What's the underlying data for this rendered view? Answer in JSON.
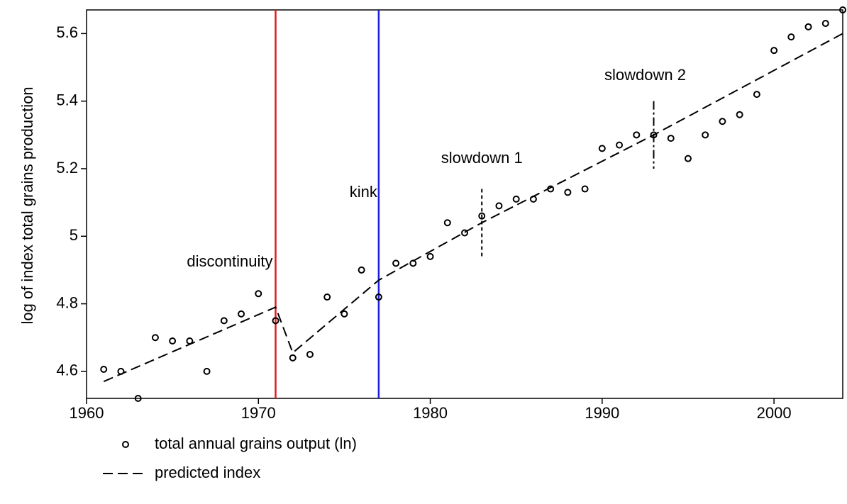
{
  "chart_data": {
    "type": "scatter",
    "ylabel": "log of index total grains production",
    "xlim": [
      1960,
      2004
    ],
    "ylim": [
      4.52,
      5.67
    ],
    "xticks": [
      1960,
      1970,
      1980,
      1990,
      2000
    ],
    "yticks": [
      4.6,
      4.8,
      5,
      5.2,
      5.4,
      5.6
    ],
    "series": [
      {
        "name": "total annual grains output (ln)",
        "color": "#000000",
        "x": [
          1961,
          1962,
          1963,
          1964,
          1965,
          1966,
          1967,
          1968,
          1969,
          1970,
          1971,
          1972,
          1973,
          1974,
          1975,
          1976,
          1977,
          1978,
          1979,
          1980,
          1981,
          1982,
          1983,
          1984,
          1985,
          1986,
          1987,
          1988,
          1989,
          1990,
          1991,
          1992,
          1993,
          1994,
          1995,
          1996,
          1997,
          1998,
          1999,
          2000,
          2001,
          2002,
          2003,
          2004
        ],
        "values": [
          4.606,
          4.6,
          4.52,
          4.7,
          4.69,
          4.69,
          4.6,
          4.75,
          4.77,
          4.83,
          4.75,
          4.64,
          4.65,
          4.82,
          4.77,
          4.9,
          4.82,
          4.92,
          4.92,
          4.94,
          5.04,
          5.01,
          5.06,
          5.09,
          5.11,
          5.11,
          5.14,
          5.13,
          5.14,
          5.26,
          5.27,
          5.3,
          5.3,
          5.29,
          5.23,
          5.3,
          5.34,
          5.36,
          5.42,
          5.55,
          5.59,
          5.62,
          5.63,
          5.67
        ]
      },
      {
        "name": "predicted index",
        "color": "#000000",
        "x": [
          1961,
          1971,
          1972,
          1977,
          1983,
          1993,
          2004
        ],
        "values": [
          4.57,
          4.79,
          4.655,
          4.87,
          5.04,
          5.3,
          5.6
        ]
      }
    ],
    "events": [
      {
        "name": "discontinuity",
        "x": 1971,
        "color": "#e41a1c"
      },
      {
        "name": "kink",
        "x": 1977,
        "color": "#1f1fe0"
      },
      {
        "name": "slowdown 1",
        "x": 1983,
        "color": "#000000"
      },
      {
        "name": "slowdown 2",
        "x": 1993,
        "color": "#000000"
      }
    ]
  }
}
